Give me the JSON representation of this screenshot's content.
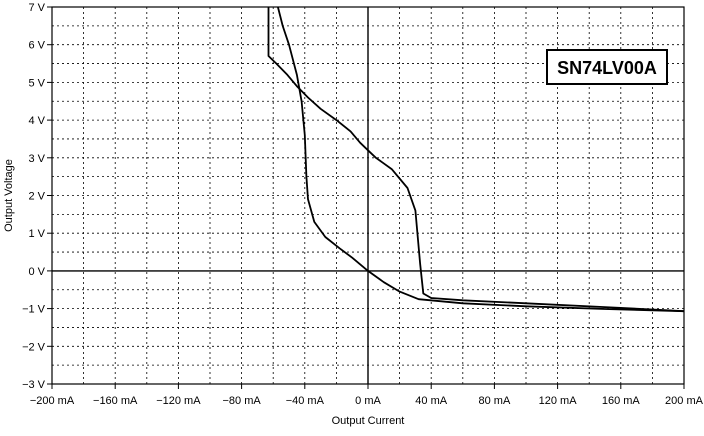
{
  "chart_data": {
    "type": "line",
    "title": "",
    "annotation": "SN74LV00A",
    "xlabel": "Output Current",
    "ylabel": "Output Voltage",
    "xlim": [
      -200,
      200
    ],
    "ylim": [
      -3,
      7
    ],
    "x_unit": "mA",
    "y_unit": "V",
    "grid": true,
    "x_ticks": [
      {
        "value": -200,
        "label": "−200 mA"
      },
      {
        "value": -160,
        "label": "−160 mA"
      },
      {
        "value": -120,
        "label": "−120 mA"
      },
      {
        "value": -80,
        "label": "−80 mA"
      },
      {
        "value": -40,
        "label": "−40 mA"
      },
      {
        "value": 0,
        "label": "0 mA"
      },
      {
        "value": 40,
        "label": "40 mA"
      },
      {
        "value": 80,
        "label": "80 mA"
      },
      {
        "value": 120,
        "label": "120 mA"
      },
      {
        "value": 160,
        "label": "160 mA"
      },
      {
        "value": 200,
        "label": "200 mA"
      }
    ],
    "y_ticks": [
      {
        "value": 7,
        "label": "7 V"
      },
      {
        "value": 6,
        "label": "6 V"
      },
      {
        "value": 5,
        "label": "5 V"
      },
      {
        "value": 4,
        "label": "4 V"
      },
      {
        "value": 3,
        "label": "3 V"
      },
      {
        "value": 2,
        "label": "2 V"
      },
      {
        "value": 1,
        "label": "1 V"
      },
      {
        "value": 0,
        "label": "0 V"
      },
      {
        "value": -1,
        "label": "−1 V"
      },
      {
        "value": -2,
        "label": "−2 V"
      },
      {
        "value": -3,
        "label": "−3 V"
      }
    ],
    "series": [
      {
        "color": "#000000",
        "points": [
          [
            -63,
            7
          ],
          [
            -63,
            6.3
          ],
          [
            -63,
            5.7
          ],
          [
            -58,
            5.5
          ],
          [
            -51,
            5.2
          ],
          [
            -45,
            4.9
          ],
          [
            -38,
            4.6
          ],
          [
            -30,
            4.3
          ],
          [
            -20,
            4.0
          ],
          [
            -11,
            3.7
          ],
          [
            -5,
            3.4
          ],
          [
            0,
            3.2
          ],
          [
            5,
            3.0
          ],
          [
            15,
            2.7
          ],
          [
            25,
            2.2
          ],
          [
            30,
            1.6
          ],
          [
            33,
            0.2
          ],
          [
            35,
            -0.6
          ],
          [
            40,
            -0.72
          ],
          [
            60,
            -0.78
          ],
          [
            100,
            -0.86
          ],
          [
            150,
            -0.96
          ],
          [
            200,
            -1.07
          ]
        ]
      },
      {
        "color": "#000000",
        "points": [
          [
            -57,
            7
          ],
          [
            -54,
            6.5
          ],
          [
            -50,
            6.0
          ],
          [
            -45,
            5.2
          ],
          [
            -42,
            4.5
          ],
          [
            -40,
            3.6
          ],
          [
            -39,
            2.5
          ],
          [
            -38,
            1.9
          ],
          [
            -34,
            1.3
          ],
          [
            -27,
            0.9
          ],
          [
            -18,
            0.6
          ],
          [
            -10,
            0.35
          ],
          [
            0,
            0
          ],
          [
            10,
            -0.3
          ],
          [
            20,
            -0.55
          ],
          [
            32,
            -0.75
          ],
          [
            60,
            -0.86
          ],
          [
            100,
            -0.94
          ],
          [
            150,
            -1.01
          ],
          [
            200,
            -1.07
          ]
        ]
      }
    ]
  }
}
